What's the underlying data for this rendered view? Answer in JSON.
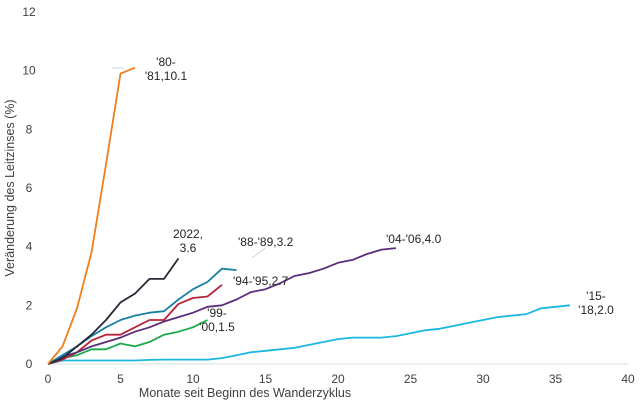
{
  "chart_data": {
    "type": "line",
    "title": "",
    "xlabel": "Monate seit Beginn des Wanderzyklus",
    "ylabel": "Veränderung des Leitzinses (%)",
    "xlim": [
      0,
      40
    ],
    "ylim": [
      0,
      12
    ],
    "xticks": [
      "0",
      "5",
      "10",
      "15",
      "20",
      "25",
      "30",
      "35",
      "40"
    ],
    "yticks": [
      "0",
      "2",
      "4",
      "6",
      "8",
      "10",
      "12"
    ],
    "grid": false,
    "series": [
      {
        "name": "'80-'81",
        "color": "#f07d1a",
        "label_lines": [
          "'80-",
          "'81,10.1"
        ],
        "label_color": "#262626",
        "x": [
          0,
          1,
          2,
          3,
          4,
          5,
          6
        ],
        "y": [
          0,
          0.6,
          1.9,
          3.8,
          6.8,
          9.9,
          10.1
        ]
      },
      {
        "name": "2022",
        "color": "#262a36",
        "label_lines": [
          "2022,",
          "3.6"
        ],
        "label_color": "#262626",
        "x": [
          0,
          1,
          2,
          3,
          4,
          5,
          6,
          7,
          8,
          9
        ],
        "y": [
          0,
          0.2,
          0.6,
          1.0,
          1.5,
          2.1,
          2.4,
          2.9,
          2.9,
          3.6
        ]
      },
      {
        "name": "'88-'89",
        "color": "#1a7fa3",
        "label_lines": [
          "'88-'89,3.2"
        ],
        "label_color": "#262626",
        "x": [
          0,
          1,
          2,
          3,
          4,
          5,
          6,
          7,
          8,
          9,
          10,
          11,
          12,
          13
        ],
        "y": [
          0,
          0.3,
          0.6,
          0.95,
          1.25,
          1.5,
          1.65,
          1.75,
          1.8,
          2.2,
          2.55,
          2.8,
          3.25,
          3.2
        ]
      },
      {
        "name": "'94-'95",
        "color": "#b5243a",
        "label_lines": [
          "'94-'95,2.7"
        ],
        "label_color": "#262626",
        "x": [
          0,
          1,
          2,
          3,
          4,
          5,
          6,
          7,
          8,
          9,
          10,
          11,
          12
        ],
        "y": [
          0,
          0.15,
          0.4,
          0.8,
          1.0,
          1.0,
          1.25,
          1.5,
          1.5,
          2.05,
          2.25,
          2.3,
          2.7
        ]
      },
      {
        "name": "'04-'06",
        "color": "#5a2d7a",
        "label_lines": [
          "'04-'06,4.0"
        ],
        "label_color": "#4a4a6a",
        "x": [
          0,
          1,
          2,
          3,
          4,
          5,
          6,
          7,
          8,
          9,
          10,
          11,
          12,
          13,
          14,
          15,
          16,
          17,
          18,
          19,
          20,
          21,
          22,
          23,
          24
        ],
        "y": [
          0,
          0.25,
          0.4,
          0.6,
          0.75,
          0.9,
          1.1,
          1.25,
          1.45,
          1.6,
          1.75,
          1.95,
          2.0,
          2.2,
          2.45,
          2.55,
          2.75,
          3.0,
          3.1,
          3.25,
          3.45,
          3.55,
          3.75,
          3.9,
          3.95
        ]
      },
      {
        "name": "'99-'00",
        "color": "#1aaa4a",
        "label_lines": [
          "'99-",
          "'00,1.5"
        ],
        "label_color": "#262626",
        "x": [
          0,
          1,
          2,
          3,
          4,
          5,
          6,
          7,
          8,
          9,
          10,
          11
        ],
        "y": [
          0,
          0.2,
          0.3,
          0.5,
          0.5,
          0.7,
          0.6,
          0.75,
          1.0,
          1.1,
          1.25,
          1.5
        ]
      },
      {
        "name": "'15-'18",
        "color": "#1ab8e0",
        "label_lines": [
          "'15-",
          "'18,2.0"
        ],
        "label_color": "#262626",
        "x": [
          0,
          1,
          2,
          3,
          4,
          5,
          6,
          7,
          8,
          9,
          10,
          11,
          12,
          13,
          14,
          15,
          16,
          17,
          18,
          19,
          20,
          21,
          22,
          23,
          24,
          25,
          26,
          27,
          28,
          29,
          30,
          31,
          32,
          33,
          34,
          35,
          36
        ],
        "y": [
          0,
          0.12,
          0.12,
          0.12,
          0.12,
          0.12,
          0.12,
          0.14,
          0.15,
          0.15,
          0.15,
          0.15,
          0.2,
          0.3,
          0.4,
          0.45,
          0.5,
          0.55,
          0.65,
          0.75,
          0.85,
          0.9,
          0.9,
          0.9,
          0.95,
          1.05,
          1.15,
          1.2,
          1.3,
          1.4,
          1.5,
          1.6,
          1.65,
          1.7,
          1.9,
          1.95,
          2.0
        ]
      }
    ]
  }
}
